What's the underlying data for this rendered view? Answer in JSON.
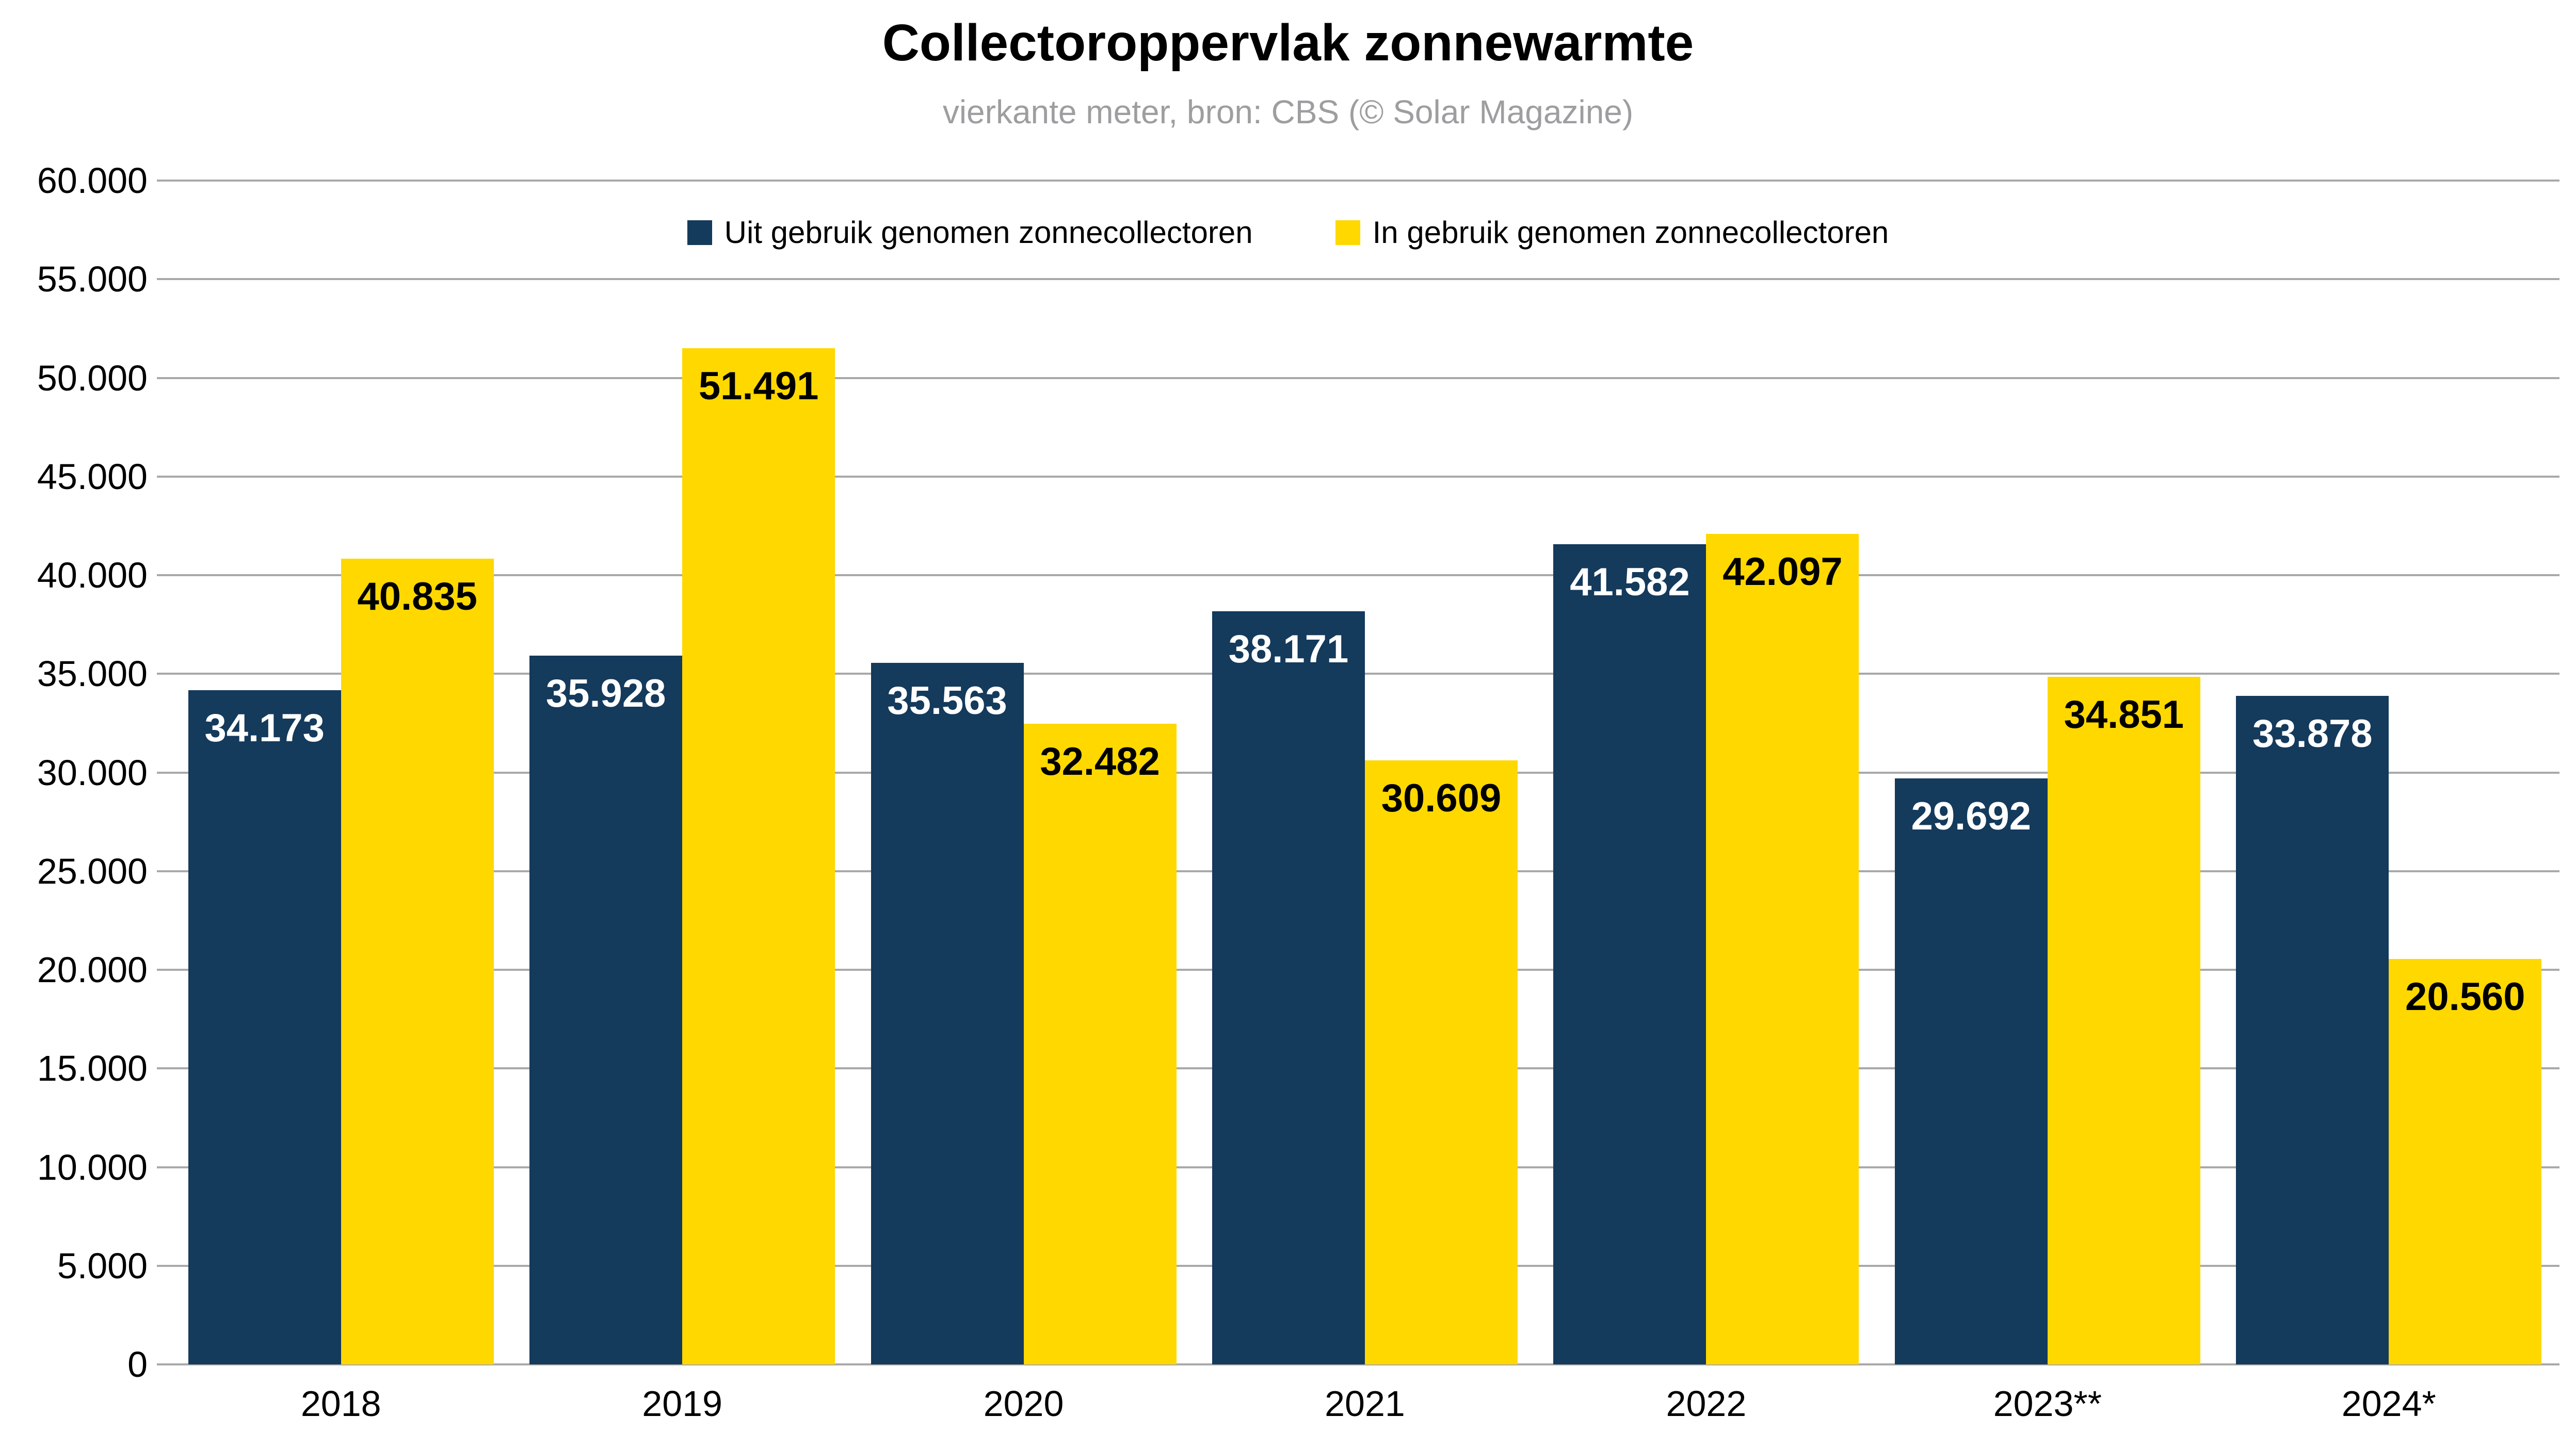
{
  "chart_data": {
    "type": "bar",
    "title": "Collectoroppervlak zonnewarmte",
    "subtitle": "vierkante meter, bron: CBS (© Solar Magazine)",
    "categories": [
      "2018",
      "2019",
      "2020",
      "2021",
      "2022",
      "2023**",
      "2024*"
    ],
    "series": [
      {
        "name": "Uit gebruik genomen zonnecollectoren",
        "color": "#143a5c",
        "label_color": "#ffffff",
        "values": [
          34173,
          35928,
          35563,
          38171,
          41582,
          29692,
          33878
        ],
        "labels": [
          "34.173",
          "35.928",
          "35.563",
          "38.171",
          "41.582",
          "29.692",
          "33.878"
        ]
      },
      {
        "name": "In gebruik genomen zonnecollectoren",
        "color": "#ffd800",
        "label_color": "#000000",
        "values": [
          40835,
          51491,
          32482,
          30609,
          42097,
          34851,
          20560
        ],
        "labels": [
          "40.835",
          "51.491",
          "32.482",
          "30.609",
          "42.097",
          "34.851",
          "20.560"
        ]
      }
    ],
    "ylim": [
      0,
      60000
    ],
    "y_ticks": [
      {
        "v": 0,
        "label": "0"
      },
      {
        "v": 5000,
        "label": "5.000"
      },
      {
        "v": 10000,
        "label": "10.000"
      },
      {
        "v": 15000,
        "label": "15.000"
      },
      {
        "v": 20000,
        "label": "20.000"
      },
      {
        "v": 25000,
        "label": "25.000"
      },
      {
        "v": 30000,
        "label": "30.000"
      },
      {
        "v": 35000,
        "label": "35.000"
      },
      {
        "v": 40000,
        "label": "40.000"
      },
      {
        "v": 45000,
        "label": "45.000"
      },
      {
        "v": 50000,
        "label": "50.000"
      },
      {
        "v": 55000,
        "label": "55.000"
      },
      {
        "v": 60000,
        "label": "60.000"
      }
    ],
    "grid": true,
    "gridline_color": "#a9a9a9",
    "legend_position": "top",
    "xlabel": "",
    "ylabel": ""
  }
}
